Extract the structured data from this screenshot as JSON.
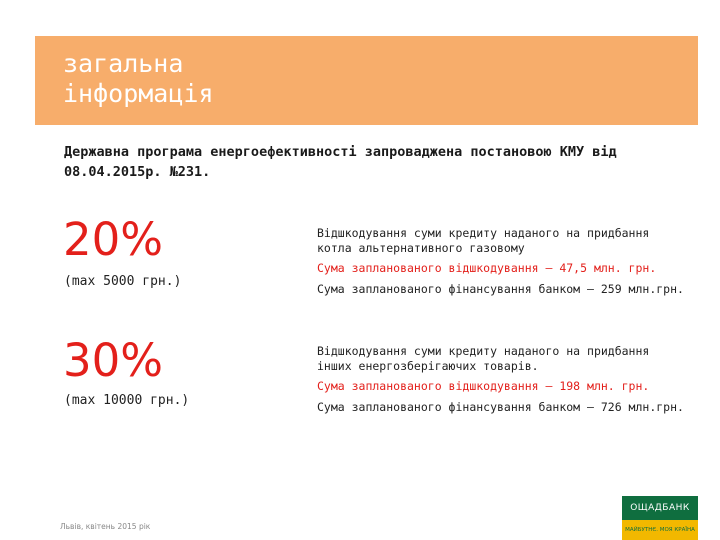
{
  "banner": {
    "title": "загальна\nінформація"
  },
  "intro": "Державна програма енергоефективності запроваджена постановою КМУ від 08.04.2015р. №231.",
  "programs": [
    {
      "percent": "20%",
      "max_note": "(max 5000 грн.)",
      "description": "Відшкодування суми кредиту наданого на придбання котла альтернативного газовому",
      "planned": "Сума запланованого відшкодування – 47,5 млн. грн.",
      "bank": "Сума запланованого фінансування банком – 259 млн.грн."
    },
    {
      "percent": "30%",
      "max_note": "(max 10000 грн.)",
      "description": "Відшкодування суми кредиту наданого на придбання інших енергозберігаючих товарів.",
      "planned": "Сума запланованого відшкодування – 198 млн. грн.",
      "bank": "Сума запланованого фінансування банком – 726 млн.грн."
    }
  ],
  "footer": {
    "location_date": "Львів, квітень 2015 рік"
  },
  "logo": {
    "name": "ОЩАДБАНК",
    "tagline": "МАЙБУТНЄ. МОЯ КРАЇНА"
  },
  "colors": {
    "banner": "#f7ad6b",
    "accent_red": "#e3201b",
    "logo_green": "#0f6e3f",
    "logo_yellow": "#f2b800"
  }
}
